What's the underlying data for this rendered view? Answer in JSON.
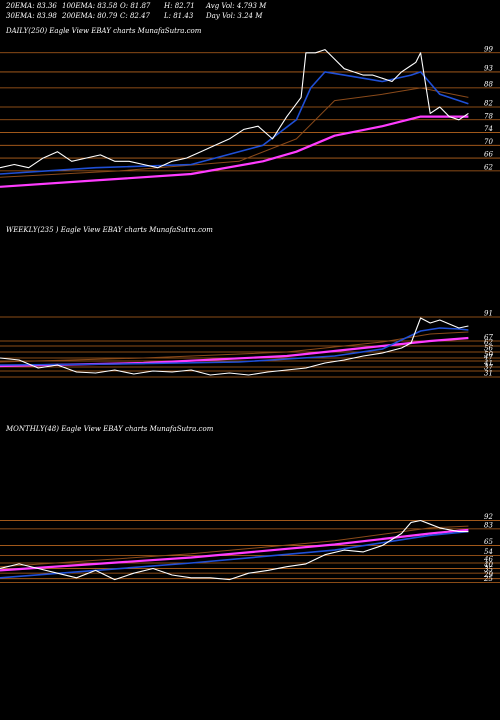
{
  "header": {
    "row1": [
      "20EMA: 83.36",
      "100EMA: 83.58",
      "O: 81.87",
      "H: 82.71",
      "Avg Vol: 4.793 M"
    ],
    "row2": [
      "30EMA: 83.98",
      "200EMA: 80.79",
      "C: 82.47",
      "L: 81.43",
      "Day Vol: 3.24 M"
    ]
  },
  "colors": {
    "background": "#000000",
    "price": "#ffffff",
    "ema_blue": "#1f4fd6",
    "ema_magenta": "#ff3cff",
    "ema_brown": "#8a4a1a",
    "gridline": "#b8641e"
  },
  "chart_data": [
    {
      "type": "line",
      "title": "DAILY(250) Eagle   View  EBAY charts MunafaSutra.com",
      "y_ticks": [
        99,
        93,
        88,
        82,
        78,
        74,
        70,
        66,
        62
      ],
      "x_range": [
        0,
        100
      ],
      "ylim": [
        56,
        103
      ],
      "series": [
        {
          "role": "price",
          "x": [
            0,
            3,
            6,
            9,
            12,
            15,
            18,
            21,
            24,
            27,
            30,
            33,
            36,
            39,
            42,
            45,
            48,
            51,
            54,
            57,
            60,
            63,
            64,
            66,
            68,
            70,
            72,
            74,
            76,
            78,
            80,
            82,
            84,
            86,
            87,
            88,
            90,
            92,
            94,
            96,
            98
          ],
          "values": [
            63,
            64,
            63,
            66,
            68,
            65,
            66,
            67,
            65,
            65,
            64,
            63,
            65,
            66,
            68,
            70,
            72,
            75,
            76,
            72,
            79,
            85,
            99,
            99,
            100,
            97,
            94,
            93,
            92,
            92,
            91,
            90,
            93,
            95,
            96,
            99,
            80,
            82,
            79,
            78,
            80
          ]
        },
        {
          "role": "ema_blue",
          "x": [
            0,
            20,
            40,
            55,
            62,
            65,
            68,
            72,
            80,
            86,
            88,
            92,
            98
          ],
          "values": [
            61,
            63,
            64,
            70,
            78,
            88,
            93,
            92,
            90,
            92,
            93,
            86,
            83
          ]
        },
        {
          "role": "ema_brown",
          "x": [
            0,
            25,
            50,
            62,
            70,
            80,
            88,
            98
          ],
          "values": [
            60,
            62,
            65,
            72,
            84,
            86,
            88,
            85
          ]
        },
        {
          "role": "ema_magenta",
          "x": [
            0,
            20,
            40,
            55,
            62,
            70,
            80,
            88,
            98
          ],
          "values": [
            57,
            59,
            61,
            65,
            68,
            73,
            76,
            79,
            79
          ]
        }
      ]
    },
    {
      "type": "line",
      "title": "WEEKLY(235                ) Eagle   View  EBAY charts MunafaSutra.com",
      "y_ticks": [
        91,
        67,
        62,
        56,
        50,
        47,
        41,
        37,
        31
      ],
      "x_range": [
        0,
        100
      ],
      "ylim": [
        26,
        98
      ],
      "series": [
        {
          "role": "price",
          "x": [
            0,
            4,
            8,
            12,
            16,
            20,
            24,
            28,
            32,
            36,
            40,
            44,
            48,
            52,
            56,
            60,
            64,
            68,
            72,
            76,
            80,
            84,
            86,
            88,
            90,
            92,
            94,
            96,
            98
          ],
          "values": [
            50,
            48,
            40,
            43,
            36,
            35,
            38,
            34,
            37,
            36,
            38,
            33,
            35,
            33,
            36,
            38,
            40,
            45,
            48,
            52,
            55,
            60,
            65,
            90,
            85,
            88,
            84,
            80,
            82
          ]
        },
        {
          "role": "ema_blue",
          "x": [
            0,
            25,
            50,
            70,
            80,
            84,
            88,
            92,
            96,
            98
          ],
          "values": [
            43,
            44,
            46,
            52,
            59,
            68,
            77,
            80,
            79,
            78
          ]
        },
        {
          "role": "ema_magenta",
          "x": [
            0,
            30,
            60,
            80,
            90,
            98
          ],
          "values": [
            42,
            45,
            52,
            62,
            67,
            70
          ]
        },
        {
          "role": "ema_brown",
          "x": [
            0,
            30,
            60,
            80,
            90,
            98
          ],
          "values": [
            46,
            50,
            56,
            66,
            74,
            76
          ]
        }
      ]
    },
    {
      "type": "line",
      "title": "MONTHLY(48) Eagle   View  EBAY charts MunafaSutra.com",
      "y_ticks": [
        92,
        83,
        65,
        54,
        46,
        40,
        35,
        29,
        25
      ],
      "x_range": [
        0,
        100
      ],
      "ylim": [
        20,
        98
      ],
      "series": [
        {
          "role": "price",
          "x": [
            0,
            4,
            8,
            12,
            16,
            20,
            24,
            28,
            32,
            36,
            40,
            44,
            48,
            52,
            56,
            60,
            64,
            68,
            72,
            76,
            80,
            84,
            86,
            88,
            90,
            92,
            94,
            96,
            98
          ],
          "values": [
            40,
            45,
            40,
            35,
            30,
            38,
            28,
            35,
            40,
            33,
            30,
            30,
            28,
            35,
            38,
            42,
            45,
            55,
            60,
            58,
            65,
            78,
            90,
            92,
            88,
            84,
            82,
            80,
            80
          ]
        },
        {
          "role": "ema_blue",
          "x": [
            0,
            40,
            70,
            90,
            98
          ],
          "values": [
            30,
            46,
            60,
            76,
            80
          ]
        },
        {
          "role": "ema_magenta",
          "x": [
            0,
            40,
            70,
            90,
            98
          ],
          "values": [
            38,
            52,
            66,
            78,
            82
          ]
        },
        {
          "role": "ema_brown",
          "x": [
            0,
            40,
            70,
            90,
            98
          ],
          "values": [
            42,
            56,
            70,
            84,
            86
          ]
        }
      ]
    }
  ]
}
